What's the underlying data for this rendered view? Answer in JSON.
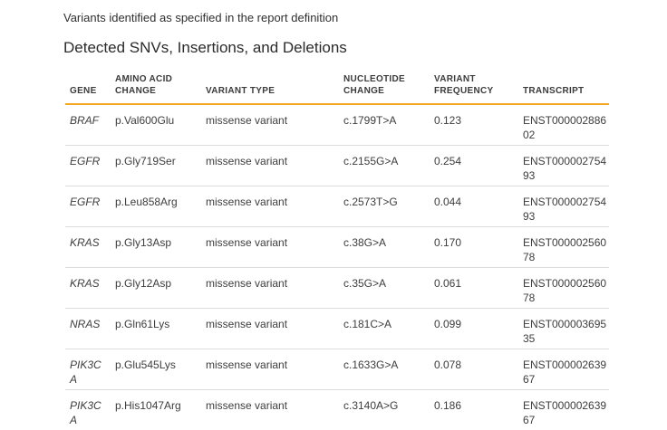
{
  "page": {
    "description": "Variants identified as specified in the report definition",
    "section_title": "Detected SNVs, Insertions, and Deletions"
  },
  "colors": {
    "accent_rule": "#f5a623",
    "row_divider": "#dcdcdc",
    "body_text": "#3d3d3d"
  },
  "table": {
    "columns": [
      {
        "key": "gene",
        "label": "GENE"
      },
      {
        "key": "amino_acid_change",
        "label": "AMINO ACID CHANGE"
      },
      {
        "key": "variant_type",
        "label": "VARIANT TYPE"
      },
      {
        "key": "nucleotide_change",
        "label": "NUCLEOTIDE CHANGE"
      },
      {
        "key": "variant_frequency",
        "label": "VARIANT FREQUENCY"
      },
      {
        "key": "transcript",
        "label": "TRANSCRIPT"
      }
    ],
    "rows": [
      {
        "gene": "BRAF",
        "amino_acid_change": "p.Val600Glu",
        "variant_type": "missense variant",
        "nucleotide_change": "c.1799T>A",
        "variant_frequency": "0.123",
        "transcript": "ENST00000288602"
      },
      {
        "gene": "EGFR",
        "amino_acid_change": "p.Gly719Ser",
        "variant_type": "missense variant",
        "nucleotide_change": "c.2155G>A",
        "variant_frequency": "0.254",
        "transcript": "ENST00000275493"
      },
      {
        "gene": "EGFR",
        "amino_acid_change": "p.Leu858Arg",
        "variant_type": "missense variant",
        "nucleotide_change": "c.2573T>G",
        "variant_frequency": "0.044",
        "transcript": "ENST00000275493"
      },
      {
        "gene": "KRAS",
        "amino_acid_change": "p.Gly13Asp",
        "variant_type": "missense variant",
        "nucleotide_change": "c.38G>A",
        "variant_frequency": "0.170",
        "transcript": "ENST00000256078"
      },
      {
        "gene": "KRAS",
        "amino_acid_change": "p.Gly12Asp",
        "variant_type": "missense variant",
        "nucleotide_change": "c.35G>A",
        "variant_frequency": "0.061",
        "transcript": "ENST00000256078"
      },
      {
        "gene": "NRAS",
        "amino_acid_change": "p.Gln61Lys",
        "variant_type": "missense variant",
        "nucleotide_change": "c.181C>A",
        "variant_frequency": "0.099",
        "transcript": "ENST00000369535"
      },
      {
        "gene": "PIK3CA",
        "amino_acid_change": "p.Glu545Lys",
        "variant_type": "missense variant",
        "nucleotide_change": "c.1633G>A",
        "variant_frequency": "0.078",
        "transcript": "ENST00000263967"
      },
      {
        "gene": "PIK3CA",
        "amino_acid_change": "p.His1047Arg",
        "variant_type": "missense variant",
        "nucleotide_change": "c.3140A>G",
        "variant_frequency": "0.186",
        "transcript": "ENST00000263967"
      }
    ]
  }
}
